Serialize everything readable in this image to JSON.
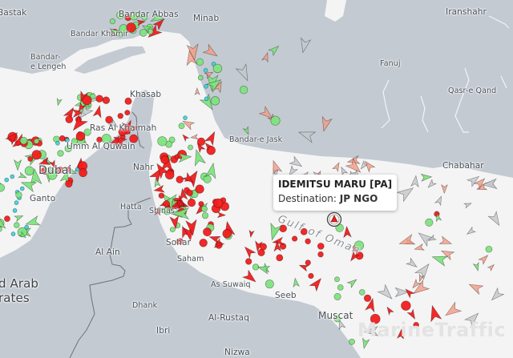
{
  "map": {
    "colors": {
      "sea": "#f4f4f4",
      "land": "#c3cad2",
      "border": "#6e737a",
      "river": "#ffffff"
    },
    "watermark": "MarineTraffic",
    "labels": {
      "bastak": "Bastak",
      "bandar_abbas": "Bandar Abbas",
      "minab": "Minab",
      "bandar_khamir": "Bandar Khamir",
      "bandar_lengeh": "Bandar-\ne Lengeh",
      "khasab": "Khasab",
      "ras_al_khaimah": "Ras Al Khaimah",
      "umm_al_quwain": "Umm Al Quwain",
      "dubai": "Dubai",
      "ganto": "Ganto",
      "nahr": "Nahr",
      "hatta": "Hatta",
      "shinas": "Shinas",
      "sohar": "Sohar",
      "saham": "Saham",
      "al_ain": "Al Ain",
      "uae": "d Arab\nrates",
      "as_suwaiq": "As Suwaiq",
      "dhank": "Dhank",
      "al_rustaq": "Al-Rustaq",
      "ibri": "Ibri",
      "nizwa": "Nizwa",
      "seeb": "Seeb",
      "muscat": "Muscat",
      "bandar_jask": "Bandar-e Jask",
      "fanuj": "Fanuj",
      "iranshahr": "Iranshahr",
      "qasr_e_qand": "Qasr-e Qand",
      "chabahar": "Chabahar",
      "gulf_of_oman": "Gulf of Oman"
    },
    "vessel_colors": {
      "tanker": "#f21c1c",
      "cargo": "#7ee37e",
      "passenger": "#3fd3e0",
      "tug": "#f59a82",
      "unknown": "#c4c8cc",
      "pleasure": "#d23be0"
    }
  },
  "popup": {
    "vessel_name": "IDEMITSU MARU [PA]",
    "destination_label": "Destination:",
    "destination": "JP NGO",
    "vessel_color": "#e0241f"
  }
}
